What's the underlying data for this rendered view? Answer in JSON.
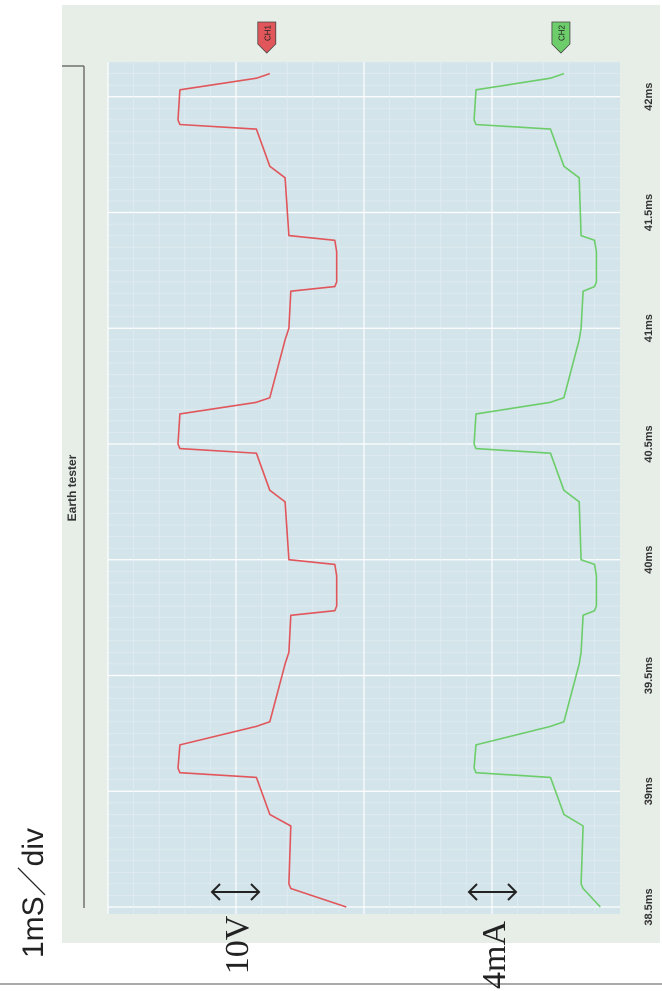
{
  "header": {
    "timebase_label": "1mS／div",
    "ch1_scale_label": "10V",
    "ch2_scale_label": "4mA"
  },
  "chart_data": {
    "type": "line",
    "title": "Earth tester",
    "x_unit": "ms",
    "x_range": [
      38.5,
      42.15
    ],
    "x_ticks": [
      "38.5ms",
      "39ms",
      "39.5ms",
      "40ms",
      "40.5ms",
      "41ms",
      "41.5ms",
      "42ms"
    ],
    "x_tick_values": [
      38.5,
      39.0,
      39.5,
      40.0,
      40.5,
      41.0,
      41.5,
      42.0
    ],
    "y_range": [
      0,
      10
    ],
    "grid": true,
    "series": [
      {
        "name": "CH1",
        "color": "#e0565b",
        "x": [
          38.5,
          38.58,
          38.6,
          38.85,
          38.9,
          39.06,
          39.08,
          39.1,
          39.2,
          39.28,
          39.3,
          39.55,
          39.6,
          39.76,
          39.78,
          39.8,
          39.93,
          39.98,
          40.0,
          40.25,
          40.3,
          40.46,
          40.48,
          40.5,
          40.63,
          40.68,
          40.7,
          40.95,
          41.0,
          41.16,
          41.18,
          41.2,
          41.33,
          41.38,
          41.4,
          41.65,
          41.7,
          41.86,
          41.88,
          41.9,
          42.03,
          42.08,
          42.1
        ],
        "y": [
          0.3,
          3.2,
          3.3,
          3.2,
          4.3,
          5.0,
          9.0,
          9.1,
          9.0,
          5.0,
          4.3,
          3.5,
          3.3,
          3.2,
          0.9,
          0.8,
          0.8,
          0.9,
          3.3,
          3.5,
          4.3,
          5.0,
          9.0,
          9.1,
          9.0,
          5.0,
          4.3,
          3.5,
          3.3,
          3.2,
          0.9,
          0.8,
          0.8,
          0.9,
          3.3,
          3.5,
          4.3,
          5.0,
          9.0,
          9.1,
          9.0,
          5.0,
          4.3
        ]
      },
      {
        "name": "CH2",
        "color": "#6ccd6a",
        "x": [
          38.5,
          38.58,
          38.6,
          38.85,
          38.9,
          39.06,
          39.08,
          39.1,
          39.2,
          39.28,
          39.3,
          39.55,
          39.6,
          39.76,
          39.78,
          39.8,
          39.93,
          39.98,
          40.0,
          40.25,
          40.3,
          40.46,
          40.48,
          40.5,
          40.63,
          40.68,
          40.7,
          40.95,
          41.0,
          41.16,
          41.18,
          41.2,
          41.33,
          41.38,
          41.4,
          41.65,
          41.7,
          41.86,
          41.88,
          41.9,
          42.03,
          42.08,
          42.1
        ],
        "y": [
          0.3,
          1.2,
          1.3,
          1.2,
          2.2,
          2.9,
          6.8,
          6.9,
          6.8,
          2.9,
          2.2,
          1.4,
          1.3,
          1.2,
          0.6,
          0.5,
          0.5,
          0.6,
          1.3,
          1.4,
          2.2,
          2.9,
          6.8,
          6.9,
          6.8,
          2.9,
          2.2,
          1.4,
          1.3,
          1.2,
          0.6,
          0.5,
          0.5,
          0.6,
          1.3,
          1.4,
          2.2,
          2.9,
          6.8,
          6.9,
          6.8,
          2.9,
          2.2
        ]
      }
    ]
  }
}
